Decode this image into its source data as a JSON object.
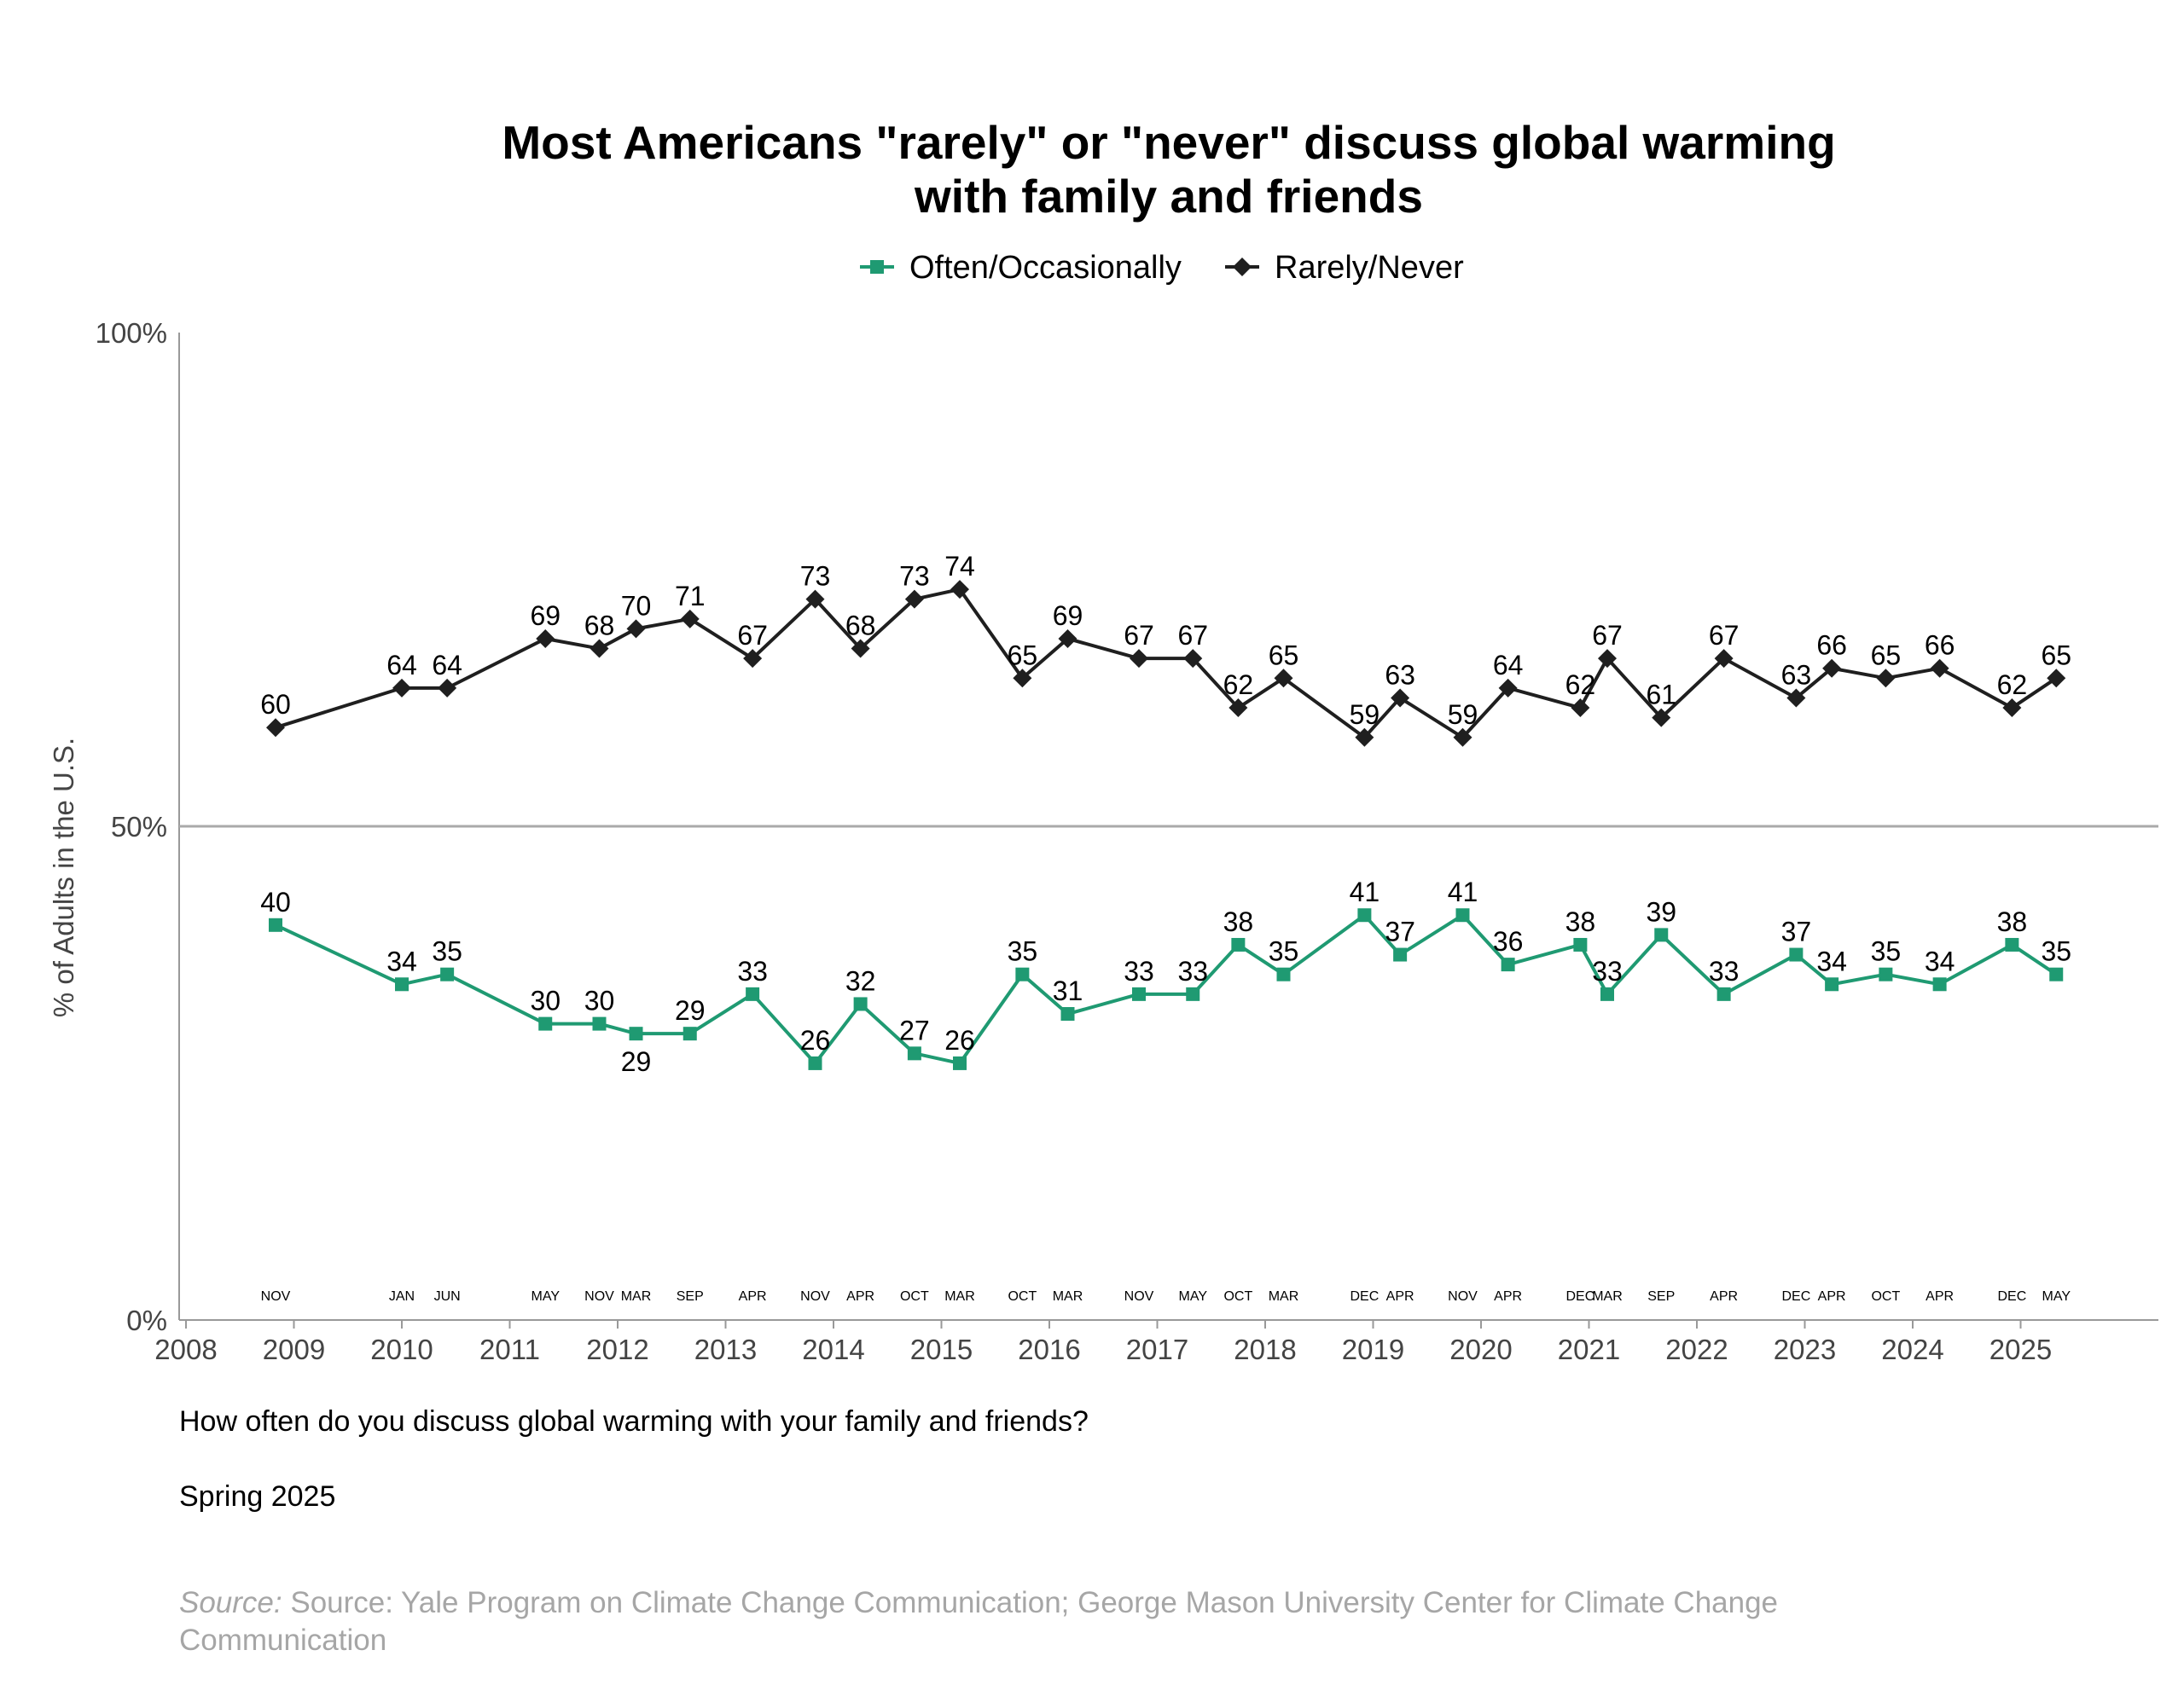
{
  "chart_data": {
    "type": "line",
    "title_lines": [
      "Most Americans \"rarely\" or \"never\" discuss global warming",
      "with family and friends"
    ],
    "ylabel": "% of Adults in the U.S.",
    "xlabel": "",
    "ylim": [
      0,
      100
    ],
    "yticks": [
      0,
      50,
      100
    ],
    "ytick_labels": [
      "0%",
      "50%",
      "100%"
    ],
    "xlim": [
      2008,
      2026.3
    ],
    "xticks": [
      2008,
      2009,
      2010,
      2011,
      2012,
      2013,
      2014,
      2015,
      2016,
      2017,
      2018,
      2019,
      2020,
      2021,
      2022,
      2023,
      2024,
      2025
    ],
    "reference_line_y": 50,
    "grid": false,
    "legend_position": "top-center",
    "x": [
      2008.83,
      2010.0,
      2010.42,
      2011.33,
      2011.83,
      2012.17,
      2012.67,
      2013.25,
      2013.83,
      2014.25,
      2014.75,
      2015.17,
      2015.75,
      2016.17,
      2016.83,
      2017.33,
      2017.75,
      2018.17,
      2018.92,
      2019.25,
      2019.83,
      2020.25,
      2020.92,
      2021.17,
      2021.67,
      2022.25,
      2022.92,
      2023.25,
      2023.75,
      2024.25,
      2024.92,
      2025.33
    ],
    "month_labels": [
      "NOV",
      "JAN",
      "JUN",
      "MAY",
      "NOV",
      "MAR",
      "SEP",
      "APR",
      "NOV",
      "APR",
      "OCT",
      "MAR",
      "OCT",
      "MAR",
      "NOV",
      "MAY",
      "OCT",
      "MAR",
      "DEC",
      "APR",
      "NOV",
      "APR",
      "DEC",
      "MAR",
      "SEP",
      "APR",
      "DEC",
      "APR",
      "OCT",
      "APR",
      "DEC",
      "MAY"
    ],
    "series": [
      {
        "name": "Often/Occasionally",
        "color": "#1f9a72",
        "marker": "square",
        "values": [
          40,
          34,
          35,
          30,
          30,
          29,
          29,
          33,
          26,
          32,
          27,
          26,
          35,
          31,
          33,
          33,
          38,
          35,
          41,
          37,
          41,
          36,
          38,
          33,
          39,
          33,
          37,
          34,
          35,
          34,
          38,
          35
        ]
      },
      {
        "name": "Rarely/Never",
        "color": "#1f1f1f",
        "marker": "diamond",
        "values": [
          60,
          64,
          64,
          69,
          68,
          70,
          71,
          67,
          73,
          68,
          73,
          74,
          65,
          69,
          67,
          67,
          62,
          65,
          59,
          63,
          59,
          64,
          62,
          67,
          61,
          67,
          63,
          66,
          65,
          66,
          62,
          65
        ]
      }
    ]
  },
  "notes": {
    "question": "How often do you discuss global warming with your family and friends?",
    "period": "Spring 2025"
  },
  "source": {
    "prefix": "Source:",
    "text": " Source: Yale Program on Climate Change Communication; George Mason University Center for Climate Change Communication"
  }
}
